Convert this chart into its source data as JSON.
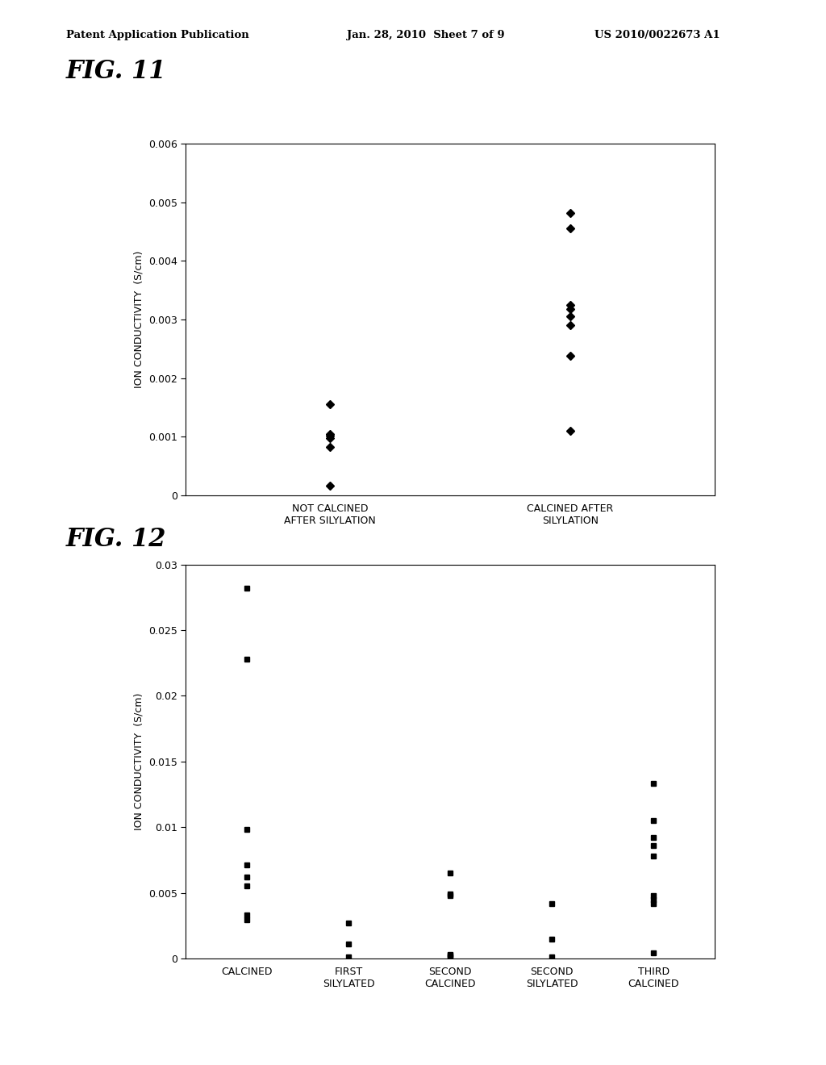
{
  "fig11": {
    "title": "FIG. 11",
    "ylabel": "ION CONDUCTIVITY  (S/cm)",
    "ylim": [
      0,
      0.006
    ],
    "yticks": [
      0,
      0.001,
      0.002,
      0.003,
      0.004,
      0.005,
      0.006
    ],
    "categories": [
      "NOT CALCINED\nAFTER SILYLATION",
      "CALCINED AFTER\nSILYLATION"
    ],
    "data": {
      "NOT CALCINED\nAFTER SILYLATION": [
        0.00016,
        0.00082,
        0.00098,
        0.00101,
        0.00105,
        0.00155
      ],
      "CALCINED AFTER\nSILYLATION": [
        0.0011,
        0.00238,
        0.0029,
        0.00305,
        0.00318,
        0.00325,
        0.00455,
        0.00482
      ]
    }
  },
  "fig12": {
    "title": "FIG. 12",
    "ylabel": "ION CONDUCTIVITY  (S/cm)",
    "ylim": [
      0,
      0.03
    ],
    "yticks": [
      0,
      0.005,
      0.01,
      0.015,
      0.02,
      0.025,
      0.03
    ],
    "categories": [
      "CALCINED",
      "FIRST\nSILYLATED",
      "SECOND\nCALCINED",
      "SECOND\nSILYLATED",
      "THIRD\nCALCINED"
    ],
    "data": {
      "CALCINED": [
        0.00295,
        0.0033,
        0.00555,
        0.0062,
        0.00715,
        0.0098,
        0.0228,
        0.0282
      ],
      "FIRST\nSILYLATED": [
        0.00015,
        0.0011,
        0.0027
      ],
      "SECOND\nCALCINED": [
        0.00015,
        0.00025,
        0.0003,
        0.0048,
        0.0049,
        0.0065
      ],
      "SECOND\nSILYLATED": [
        0.00015,
        0.0015,
        0.0042
      ],
      "THIRD\nCALCINED": [
        0.0004,
        0.0042,
        0.0045,
        0.0048,
        0.0078,
        0.0086,
        0.0092,
        0.0105,
        0.0133
      ]
    }
  },
  "header_left": "Patent Application Publication",
  "header_mid": "Jan. 28, 2010  Sheet 7 of 9",
  "header_right": "US 2010/0022673 A1",
  "background_color": "#ffffff",
  "marker_color": "#000000",
  "marker_size_fig11": 5,
  "marker_size_fig12": 5
}
